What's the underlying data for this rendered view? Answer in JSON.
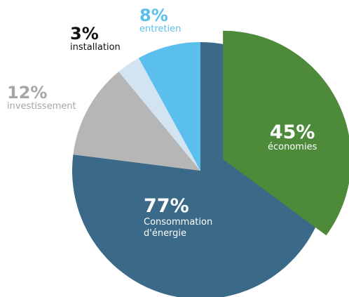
{
  "chart_data": {
    "type": "pie",
    "title": "",
    "slices": [
      {
        "value": 77,
        "label_pct": "77%",
        "label_line1": "Consommation",
        "label_line2": "d'énergie",
        "color": "#3b6a89"
      },
      {
        "value": 12,
        "label_pct": "12%",
        "label_line1": "investissement",
        "color": "#b6b6b6"
      },
      {
        "value": 3,
        "label_pct": "3%",
        "label_line1": "installation",
        "color": "#d2e3f2"
      },
      {
        "value": 8,
        "label_pct": "8%",
        "label_line1": "entretien",
        "color": "#5bbfee"
      }
    ],
    "exploded": {
      "value": 45,
      "label_pct": "45%",
      "label_line1": "économies",
      "color": "#4d8a3a",
      "part_of": "Consommation d'énergie"
    }
  }
}
